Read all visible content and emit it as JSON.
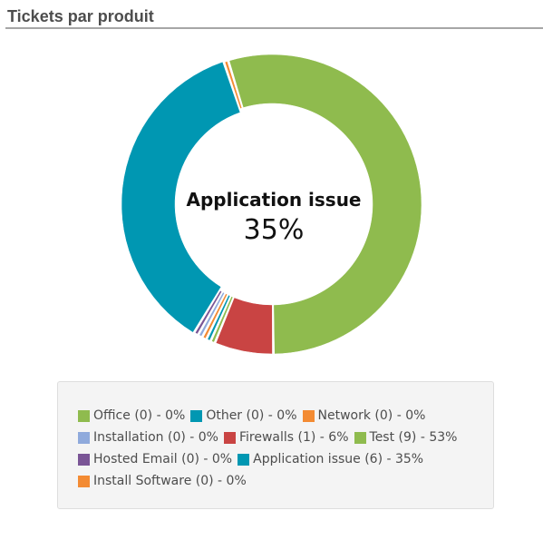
{
  "panel": {
    "title": "Tickets par produit"
  },
  "chart_data": {
    "type": "donut",
    "center": {
      "label": "Application issue",
      "value": "35%"
    },
    "slices": [
      {
        "name": "Office",
        "value": 0,
        "percent": 0,
        "color": "#8fbb4e",
        "legend": "Office (0) - 0%"
      },
      {
        "name": "Other",
        "value": 0,
        "percent": 0,
        "color": "#0097b2",
        "legend": "Other (0) - 0%"
      },
      {
        "name": "Network",
        "value": 0,
        "percent": 0,
        "color": "#f38b33",
        "legend": "Network (0) - 0%"
      },
      {
        "name": "Installation",
        "value": 0,
        "percent": 0,
        "color": "#8faadc",
        "legend": "Installation (0) - 0%"
      },
      {
        "name": "Firewalls",
        "value": 1,
        "percent": 6,
        "color": "#c94443",
        "legend": "Firewalls (1) - 6%"
      },
      {
        "name": "Test",
        "value": 9,
        "percent": 53,
        "color": "#8fbb4e",
        "legend": "Test (9) - 53%"
      },
      {
        "name": "Hosted Email",
        "value": 0,
        "percent": 0,
        "color": "#7a5596",
        "legend": "Hosted Email (0) - 0%"
      },
      {
        "name": "Application issue",
        "value": 6,
        "percent": 35,
        "color": "#0097b2",
        "legend": "Application issue (6) - 35%"
      },
      {
        "name": "Install Software",
        "value": 0,
        "percent": 0,
        "color": "#f38b33",
        "legend": "Install Software (0) - 0%"
      }
    ],
    "legend_rows": [
      [
        0,
        1,
        2
      ],
      [
        3,
        4,
        5
      ],
      [
        6,
        7
      ],
      [
        8
      ]
    ],
    "legend_position": "bottom",
    "highlighted": "Application issue"
  }
}
